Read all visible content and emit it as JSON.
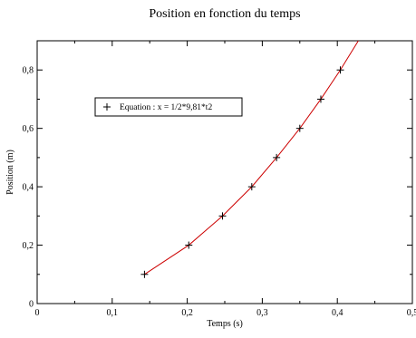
{
  "chart_data": {
    "type": "line",
    "title": "Position en fonction du temps",
    "xlabel": "Temps (s)",
    "ylabel": "Position (m)",
    "xlim": [
      0,
      0.5
    ],
    "ylim": [
      0,
      0.9
    ],
    "x_ticks": [
      0,
      0.1,
      0.2,
      0.3,
      0.4,
      0.5
    ],
    "x_tick_labels": [
      "0",
      "0,1",
      "0,2",
      "0,3",
      "0,4",
      "0,5"
    ],
    "y_ticks": [
      0,
      0.2,
      0.4,
      0.6,
      0.8
    ],
    "y_tick_labels": [
      "0",
      "0,2",
      "0,4",
      "0,6",
      "0,8"
    ],
    "grid": false,
    "legend_position": "upper-left",
    "series": [
      {
        "name": "Equation :  x = 1/2*9,81*t2",
        "marker": "plus",
        "color": "#cc0000",
        "marker_color": "#000000",
        "x": [
          0.143,
          0.202,
          0.247,
          0.286,
          0.319,
          0.35,
          0.378,
          0.404
        ],
        "y": [
          0.1,
          0.2,
          0.3,
          0.4,
          0.5,
          0.6,
          0.7,
          0.8
        ]
      }
    ],
    "curve_extends_to": [
      0.428,
      0.9
    ]
  }
}
